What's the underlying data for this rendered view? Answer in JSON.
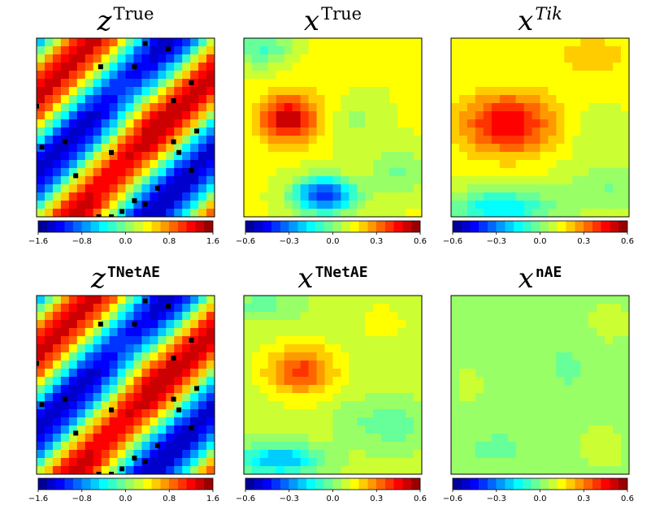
{
  "figure": {
    "panels": [
      {
        "id": "z-true",
        "title_base": "z",
        "title_sup": "True",
        "sup_style": "serif",
        "field": "z",
        "show_markers": true,
        "colorbar": "z"
      },
      {
        "id": "x-true",
        "title_base": "x",
        "title_sup": "True",
        "sup_style": "serif",
        "field": "xtrue",
        "show_markers": false,
        "colorbar": "x"
      },
      {
        "id": "x-tik",
        "title_base": "x",
        "title_sup": "Tik",
        "sup_style": "italic",
        "field": "xtik",
        "show_markers": false,
        "colorbar": "x"
      },
      {
        "id": "z-tnetae",
        "title_base": "z",
        "title_sup": "TNetAE",
        "sup_style": "mono",
        "field": "z",
        "show_markers": true,
        "colorbar": "z"
      },
      {
        "id": "x-tnetae",
        "title_base": "x",
        "title_sup": "TNetAE",
        "sup_style": "mono",
        "field": "xtnet",
        "show_markers": false,
        "colorbar": "x"
      },
      {
        "id": "x-nae",
        "title_base": "x",
        "title_sup": "nAE",
        "sup_style": "mono",
        "field": "xnae",
        "show_markers": false,
        "colorbar": "x"
      }
    ],
    "colorbars": {
      "z": {
        "ticks": [
          "−1.6",
          "−0.8",
          "0.0",
          "0.8",
          "1.6"
        ],
        "range": [
          -1.6,
          1.6
        ]
      },
      "x": {
        "ticks": [
          "−0.6",
          "−0.3",
          "0.0",
          "0.3",
          "0.6"
        ],
        "range": [
          -0.6,
          0.6
        ]
      }
    },
    "colormap": "jet",
    "contour_levels": 20
  },
  "chart_data": {
    "type": "heatmap",
    "description_of_fields": "filled contour plots on the unit square",
    "panels": [
      {
        "title": "z^True",
        "colorbar_range": [
          -1.6,
          1.6
        ]
      },
      {
        "title": "x^True",
        "colorbar_range": [
          -0.6,
          0.6
        ]
      },
      {
        "title": "x^Tik",
        "colorbar_range": [
          -0.6,
          0.6
        ]
      },
      {
        "title": "z^TNetAE",
        "colorbar_range": [
          -1.6,
          1.6
        ]
      },
      {
        "title": "x^TNetAE",
        "colorbar_range": [
          -0.6,
          0.6
        ]
      },
      {
        "title": "x^nAE",
        "colorbar_range": [
          -0.6,
          0.6
        ]
      }
    ],
    "sensor_points": [
      [
        0.61,
        0.03
      ],
      [
        0.74,
        0.06
      ],
      [
        0.36,
        0.16
      ],
      [
        0.55,
        0.16
      ],
      [
        0.87,
        0.25
      ],
      [
        0.77,
        0.35
      ],
      [
        0.0,
        0.38
      ],
      [
        0.9,
        0.52
      ],
      [
        0.03,
        0.61
      ],
      [
        0.16,
        0.58
      ],
      [
        0.77,
        0.58
      ],
      [
        0.42,
        0.64
      ],
      [
        0.8,
        0.64
      ],
      [
        0.87,
        0.74
      ],
      [
        0.22,
        0.77
      ],
      [
        0.68,
        0.84
      ],
      [
        0.55,
        0.91
      ],
      [
        0.61,
        0.93
      ],
      [
        0.48,
        0.97
      ],
      [
        0.35,
        1.0
      ],
      [
        0.42,
        1.0
      ]
    ]
  }
}
